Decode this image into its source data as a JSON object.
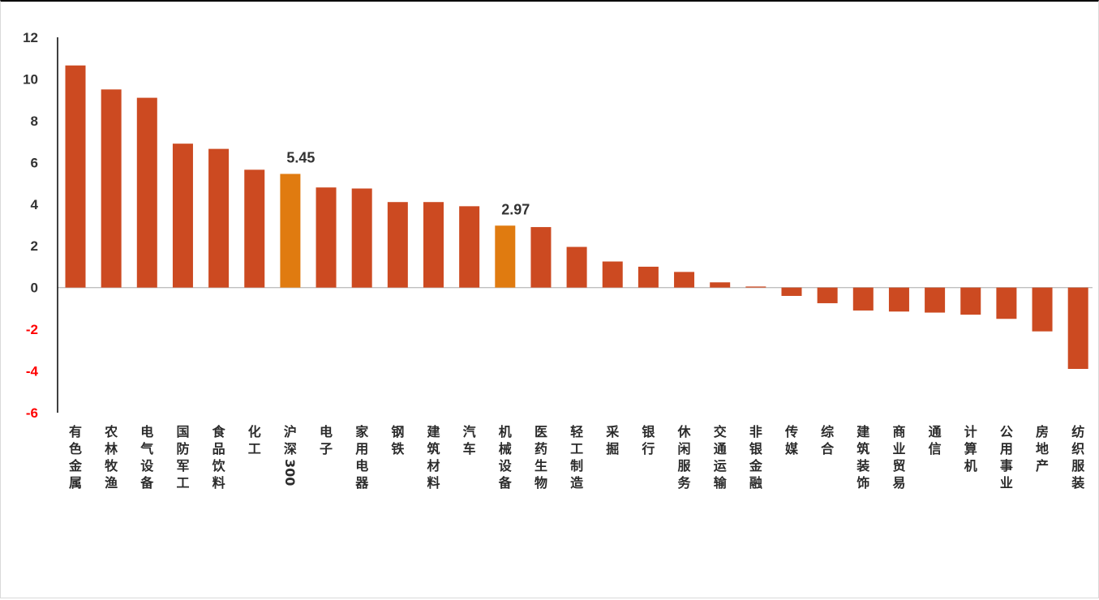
{
  "chart_data": {
    "type": "bar",
    "title": "",
    "xlabel": "",
    "ylabel": "",
    "ylim": [
      -6,
      12
    ],
    "yticks": [
      12,
      10,
      8,
      6,
      4,
      2,
      0,
      -2,
      -4,
      -6
    ],
    "grid": false,
    "legend": "none",
    "categories": [
      "有色金属",
      "农林牧渔",
      "电气设备",
      "国防军工",
      "食品饮料",
      "化工",
      "沪深300",
      "电子",
      "家用电器",
      "钢铁",
      "建筑材料",
      "汽车",
      "机械设备",
      "医药生物",
      "轻工制造",
      "采掘",
      "银行",
      "休闲服务",
      "交通运输",
      "非银金融",
      "传媒",
      "综合",
      "建筑装饰",
      "商业贸易",
      "通信",
      "计算机",
      "公用事业",
      "房地产",
      "纺织服装"
    ],
    "values": [
      10.65,
      9.5,
      9.1,
      6.9,
      6.65,
      5.65,
      5.45,
      4.8,
      4.75,
      4.1,
      4.1,
      3.9,
      2.97,
      2.9,
      1.95,
      1.25,
      1.0,
      0.75,
      0.25,
      0.05,
      -0.4,
      -0.75,
      -1.1,
      -1.15,
      -1.2,
      -1.3,
      -1.5,
      -2.1,
      -3.9
    ],
    "highlighted": [
      "沪深300",
      "机械设备"
    ],
    "data_labels": [
      {
        "category": "沪深300",
        "text": "5.45"
      },
      {
        "category": "机械设备",
        "text": "2.97"
      }
    ],
    "colors": {
      "bar": "#cc4a21",
      "highlight": "#e07b10",
      "positive_tick": "#333333",
      "negative_tick": "#ff0000",
      "axis": "#000000",
      "zero_line": "#bfbfbf"
    }
  }
}
